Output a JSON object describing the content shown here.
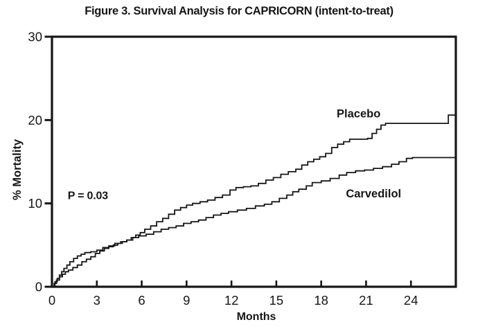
{
  "figure": {
    "title": "Figure 3. Survival Analysis for CAPRICORN (intent-to-treat)"
  },
  "colors": {
    "ink": "#161616",
    "background": "#ffffff"
  },
  "chart_data": {
    "type": "line",
    "subtype": "kaplan-meier-step",
    "title": "Figure 3. Survival Analysis for CAPRICORN (intent-to-treat)",
    "xlabel": "Months",
    "ylabel": "% Mortality",
    "xlim": [
      0,
      27
    ],
    "ylim": [
      0,
      30
    ],
    "x_ticks": [
      0,
      3,
      6,
      9,
      12,
      15,
      18,
      21,
      24
    ],
    "y_ticks": [
      0,
      10,
      20,
      30
    ],
    "grid": false,
    "legend_position": "inline-labels",
    "annotations": [
      {
        "text": "P = 0.03",
        "x": 2.4,
        "y": 11.0
      }
    ],
    "series": [
      {
        "name": "Placebo",
        "label": "Placebo",
        "label_pos": {
          "x": 20.5,
          "y": 20.8
        },
        "points": [
          [
            0,
            0
          ],
          [
            0.15,
            0.4
          ],
          [
            0.3,
            0.8
          ],
          [
            0.5,
            1.2
          ],
          [
            0.7,
            1.5
          ],
          [
            0.9,
            1.8
          ],
          [
            1.1,
            2.0
          ],
          [
            1.4,
            2.3
          ],
          [
            1.7,
            2.6
          ],
          [
            2.0,
            3.0
          ],
          [
            2.3,
            3.3
          ],
          [
            2.6,
            3.6
          ],
          [
            2.9,
            4.0
          ],
          [
            3.2,
            4.3
          ],
          [
            3.5,
            4.6
          ],
          [
            3.8,
            4.8
          ],
          [
            4.1,
            5.0
          ],
          [
            4.4,
            5.2
          ],
          [
            4.7,
            5.4
          ],
          [
            5.0,
            5.6
          ],
          [
            5.3,
            5.9
          ],
          [
            5.6,
            6.2
          ],
          [
            5.9,
            6.5
          ],
          [
            6.2,
            6.9
          ],
          [
            6.6,
            7.3
          ],
          [
            7.0,
            7.8
          ],
          [
            7.4,
            8.2
          ],
          [
            7.8,
            8.7
          ],
          [
            8.2,
            9.2
          ],
          [
            8.6,
            9.5
          ],
          [
            9.0,
            9.8
          ],
          [
            9.4,
            10.0
          ],
          [
            9.9,
            10.2
          ],
          [
            10.4,
            10.4
          ],
          [
            10.9,
            10.7
          ],
          [
            11.4,
            11.0
          ],
          [
            11.9,
            11.6
          ],
          [
            12.3,
            11.9
          ],
          [
            12.8,
            12.0
          ],
          [
            13.3,
            12.1
          ],
          [
            13.8,
            12.4
          ],
          [
            14.3,
            12.8
          ],
          [
            14.8,
            13.1
          ],
          [
            15.3,
            13.5
          ],
          [
            15.8,
            13.8
          ],
          [
            16.3,
            14.1
          ],
          [
            16.7,
            14.6
          ],
          [
            17.1,
            15.0
          ],
          [
            17.5,
            15.3
          ],
          [
            17.9,
            15.6
          ],
          [
            18.3,
            16.0
          ],
          [
            18.7,
            16.7
          ],
          [
            19.1,
            17.1
          ],
          [
            19.5,
            17.4
          ],
          [
            19.9,
            17.7
          ],
          [
            21.1,
            17.8
          ],
          [
            21.4,
            18.4
          ],
          [
            21.7,
            18.9
          ],
          [
            22.0,
            19.4
          ],
          [
            22.3,
            19.6
          ],
          [
            26.3,
            19.6
          ],
          [
            26.5,
            20.6
          ],
          [
            27,
            20.6
          ]
        ]
      },
      {
        "name": "Carvedilol",
        "label": "Carvedilol",
        "label_pos": {
          "x": 21.5,
          "y": 11.2
        },
        "points": [
          [
            0,
            0
          ],
          [
            0.2,
            0.6
          ],
          [
            0.35,
            1.0
          ],
          [
            0.5,
            1.4
          ],
          [
            0.65,
            1.8
          ],
          [
            0.8,
            2.2
          ],
          [
            1.0,
            2.6
          ],
          [
            1.2,
            3.0
          ],
          [
            1.45,
            3.4
          ],
          [
            1.7,
            3.7
          ],
          [
            1.95,
            3.9
          ],
          [
            2.2,
            4.1
          ],
          [
            2.6,
            4.2
          ],
          [
            3.0,
            4.4
          ],
          [
            3.4,
            4.7
          ],
          [
            3.8,
            4.9
          ],
          [
            4.2,
            5.2
          ],
          [
            4.6,
            5.4
          ],
          [
            5.0,
            5.6
          ],
          [
            5.4,
            5.9
          ],
          [
            5.8,
            6.1
          ],
          [
            6.3,
            6.3
          ],
          [
            6.8,
            6.6
          ],
          [
            7.3,
            6.9
          ],
          [
            7.8,
            7.1
          ],
          [
            8.3,
            7.3
          ],
          [
            8.8,
            7.6
          ],
          [
            9.3,
            7.8
          ],
          [
            9.8,
            8.0
          ],
          [
            10.3,
            8.3
          ],
          [
            10.8,
            8.6
          ],
          [
            11.3,
            8.8
          ],
          [
            11.8,
            9.0
          ],
          [
            12.4,
            9.2
          ],
          [
            13.0,
            9.4
          ],
          [
            13.6,
            9.7
          ],
          [
            14.2,
            9.9
          ],
          [
            14.7,
            10.2
          ],
          [
            15.2,
            10.6
          ],
          [
            15.7,
            11.0
          ],
          [
            16.1,
            11.4
          ],
          [
            16.5,
            11.7
          ],
          [
            17.0,
            12.1
          ],
          [
            17.4,
            12.5
          ],
          [
            18.0,
            12.7
          ],
          [
            18.6,
            13.0
          ],
          [
            19.2,
            13.4
          ],
          [
            19.7,
            13.7
          ],
          [
            20.3,
            13.9
          ],
          [
            20.9,
            14.0
          ],
          [
            21.5,
            14.2
          ],
          [
            22.1,
            14.4
          ],
          [
            22.7,
            14.7
          ],
          [
            23.2,
            15.0
          ],
          [
            23.7,
            15.4
          ],
          [
            24.1,
            15.5
          ],
          [
            27,
            15.5
          ]
        ]
      }
    ]
  }
}
